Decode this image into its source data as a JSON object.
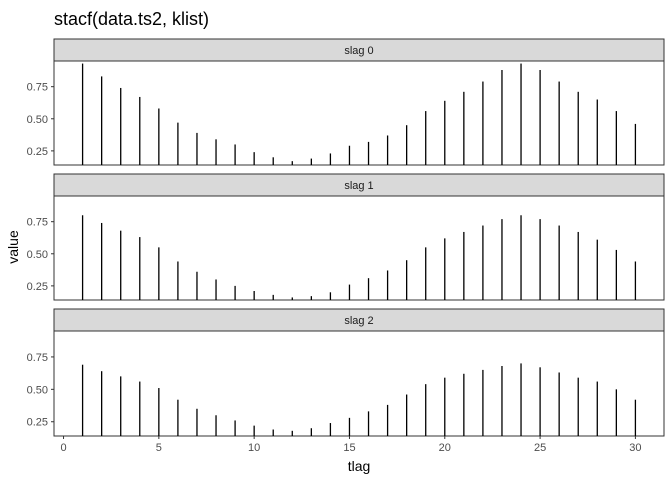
{
  "chart_data": {
    "type": "bar",
    "title": "stacf(data.ts2, klist)",
    "xlabel": "tlag",
    "ylabel": "value",
    "xlim": [
      -0.5,
      31.5
    ],
    "ylim": [
      0.14,
      0.95
    ],
    "x_ticks": [
      0,
      5,
      10,
      15,
      20,
      25,
      30
    ],
    "y_ticks": [
      0.25,
      0.5,
      0.75
    ],
    "y_tick_labels": [
      "0.25",
      "0.50",
      "0.75"
    ],
    "grid": false,
    "facets": [
      {
        "name": "slag 0",
        "x": [
          1,
          2,
          3,
          4,
          5,
          6,
          7,
          8,
          9,
          10,
          11,
          12,
          13,
          14,
          15,
          16,
          17,
          18,
          19,
          20,
          21,
          22,
          23,
          24,
          25,
          26,
          27,
          28,
          29,
          30
        ],
        "values": [
          0.93,
          0.83,
          0.74,
          0.67,
          0.58,
          0.47,
          0.39,
          0.34,
          0.3,
          0.24,
          0.2,
          0.17,
          0.19,
          0.23,
          0.29,
          0.32,
          0.37,
          0.45,
          0.56,
          0.64,
          0.71,
          0.79,
          0.88,
          0.93,
          0.88,
          0.79,
          0.71,
          0.65,
          0.56,
          0.46
        ]
      },
      {
        "name": "slag 1",
        "x": [
          1,
          2,
          3,
          4,
          5,
          6,
          7,
          8,
          9,
          10,
          11,
          12,
          13,
          14,
          15,
          16,
          17,
          18,
          19,
          20,
          21,
          22,
          23,
          24,
          25,
          26,
          27,
          28,
          29,
          30
        ],
        "values": [
          0.8,
          0.74,
          0.68,
          0.63,
          0.55,
          0.44,
          0.36,
          0.3,
          0.25,
          0.21,
          0.18,
          0.16,
          0.17,
          0.2,
          0.26,
          0.31,
          0.37,
          0.45,
          0.55,
          0.62,
          0.67,
          0.72,
          0.77,
          0.8,
          0.77,
          0.72,
          0.67,
          0.61,
          0.53,
          0.44
        ]
      },
      {
        "name": "slag 2",
        "x": [
          1,
          2,
          3,
          4,
          5,
          6,
          7,
          8,
          9,
          10,
          11,
          12,
          13,
          14,
          15,
          16,
          17,
          18,
          19,
          20,
          21,
          22,
          23,
          24,
          25,
          26,
          27,
          28,
          29,
          30
        ],
        "values": [
          0.69,
          0.64,
          0.6,
          0.56,
          0.51,
          0.42,
          0.35,
          0.3,
          0.26,
          0.22,
          0.19,
          0.18,
          0.2,
          0.24,
          0.28,
          0.33,
          0.38,
          0.46,
          0.54,
          0.59,
          0.62,
          0.65,
          0.68,
          0.7,
          0.67,
          0.63,
          0.59,
          0.56,
          0.5,
          0.42
        ]
      }
    ]
  }
}
